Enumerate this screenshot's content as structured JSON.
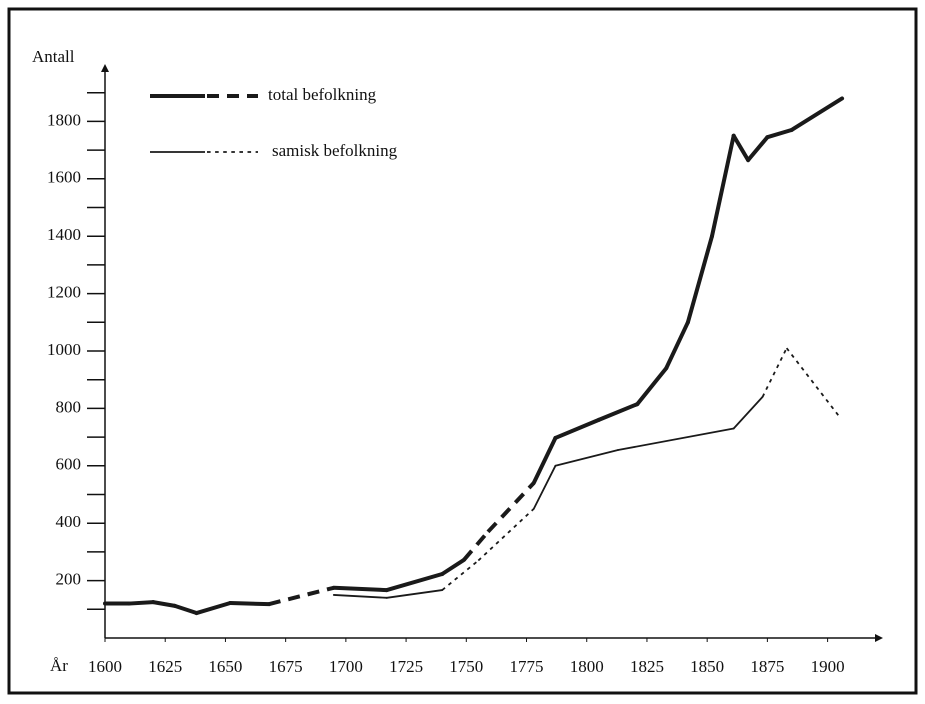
{
  "chart_data": {
    "type": "line",
    "y_label": "Antall",
    "x_label": "År",
    "xlim": [
      1600,
      1923
    ],
    "xticks": [
      1600,
      1625,
      1650,
      1675,
      1700,
      1725,
      1750,
      1775,
      1800,
      1825,
      1850,
      1875,
      1900
    ],
    "ylim": [
      0,
      2000
    ],
    "yticks": [
      200,
      400,
      600,
      800,
      1000,
      1200,
      1400,
      1600,
      1800
    ],
    "yminor_ticks": [
      100,
      300,
      500,
      700,
      900,
      1100,
      1300,
      1500,
      1700,
      1900
    ],
    "series": [
      {
        "name": "total befolkning",
        "color": "#1a1a1a",
        "width": 4,
        "x": [
          1600,
          1610,
          1620,
          1629,
          1638,
          1652,
          1668,
          1695,
          1717,
          1740,
          1749,
          1759,
          1778,
          1787,
          1805,
          1821,
          1833,
          1842,
          1852,
          1861,
          1867,
          1875,
          1885,
          1906
        ],
        "values": [
          120,
          120,
          125,
          112,
          87,
          122,
          118,
          175,
          167,
          223,
          272,
          370,
          540,
          697,
          760,
          815,
          940,
          1100,
          1400,
          1750,
          1665,
          1745,
          1770,
          1880
        ],
        "segment_styles": [
          null,
          "solid",
          "solid",
          "solid",
          "solid",
          "solid",
          "solid",
          "dashed",
          "solid",
          "solid",
          "solid",
          "dashed",
          "dashed",
          "solid",
          "solid",
          "solid",
          "solid",
          "solid",
          "solid",
          "solid",
          "solid",
          "solid",
          "solid",
          "solid"
        ]
      },
      {
        "name": "samisk befolkning",
        "color": "#1a1a1a",
        "width": 1.8,
        "x": [
          1695,
          1717,
          1740,
          1755,
          1778,
          1787,
          1813,
          1861,
          1873,
          1883,
          1905
        ],
        "values": [
          150,
          140,
          167,
          270,
          450,
          600,
          655,
          730,
          840,
          1010,
          770
        ],
        "segment_styles": [
          null,
          "solid",
          "solid",
          "dotted",
          "dotted",
          "solid",
          "solid",
          "solid",
          "solid",
          "dotted",
          "dotted"
        ]
      }
    ]
  }
}
